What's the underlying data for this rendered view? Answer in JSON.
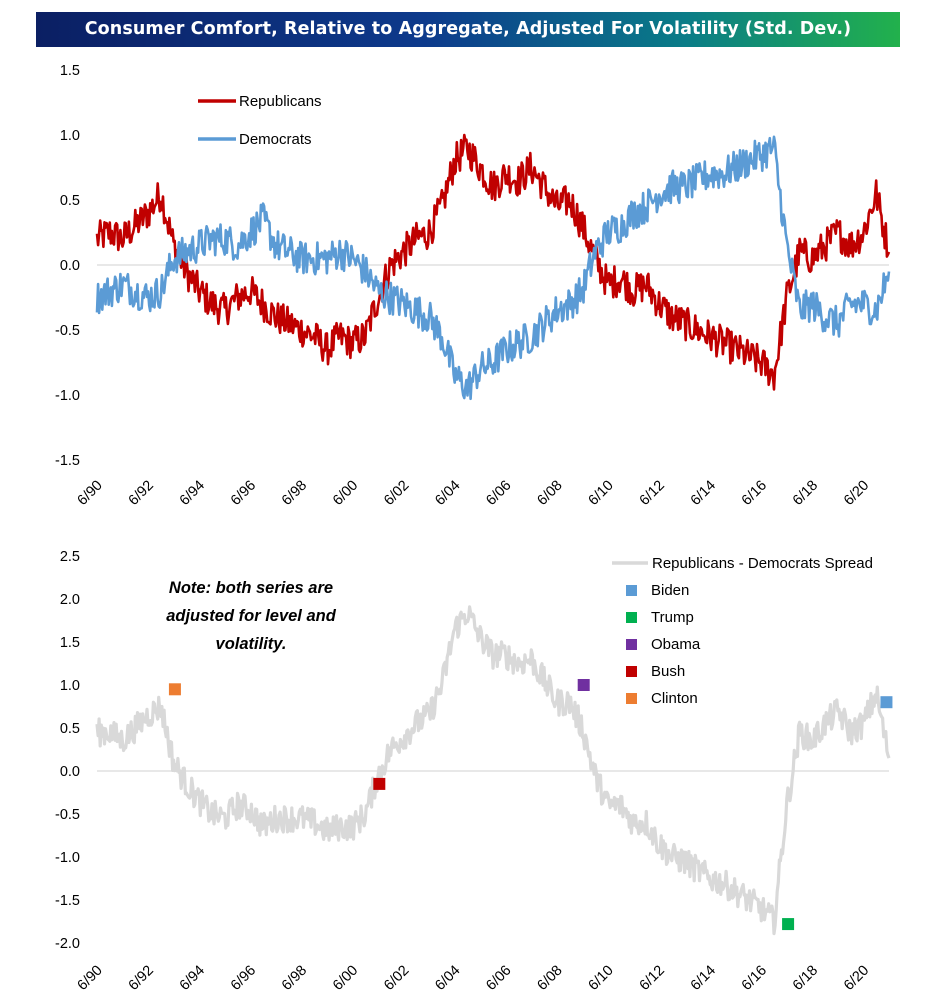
{
  "title": "Consumer Comfort, Relative to Aggregate, Adjusted For Volatility (Std. Dev.)",
  "colors": {
    "republicans": "#c00000",
    "democrats": "#5b9bd5",
    "spread": "#d9d9d9",
    "biden": "#5b9bd5",
    "trump": "#00b050",
    "obama": "#7030a0",
    "bush": "#c00000",
    "clinton": "#ed7d31"
  },
  "chart_data": [
    {
      "type": "line",
      "title": "Consumer Comfort, Relative to Aggregate, Adjusted For Volatility (Std. Dev.)",
      "xlabel": "",
      "ylabel": "",
      "ylim": [
        -1.5,
        1.5
      ],
      "y_ticks": [
        "1.5",
        "1.0",
        "0.5",
        "0.0",
        "-0.5",
        "-1.0",
        "-1.5"
      ],
      "x_ticks": [
        "6/90",
        "6/92",
        "6/94",
        "6/96",
        "6/98",
        "6/00",
        "6/02",
        "6/04",
        "6/06",
        "6/08",
        "6/10",
        "6/12",
        "6/14",
        "6/16",
        "6/18",
        "6/20"
      ],
      "x_range": [
        1990.0,
        2021.0
      ],
      "legend": "top-left",
      "series": [
        {
          "name": "Republicans",
          "x": [
            1990.0,
            1990.5,
            1991.0,
            1991.5,
            1992.0,
            1992.5,
            1993.0,
            1993.5,
            1994.0,
            1994.5,
            1995.0,
            1995.5,
            1996.0,
            1996.5,
            1997.0,
            1997.5,
            1998.0,
            1998.5,
            1999.0,
            1999.5,
            2000.0,
            2000.5,
            2001.0,
            2001.5,
            2002.0,
            2002.5,
            2003.0,
            2003.5,
            2004.0,
            2004.5,
            2005.0,
            2005.5,
            2006.0,
            2006.5,
            2007.0,
            2007.5,
            2008.0,
            2008.5,
            2009.0,
            2009.5,
            2010.0,
            2010.5,
            2011.0,
            2011.5,
            2012.0,
            2012.5,
            2013.0,
            2013.5,
            2014.0,
            2014.5,
            2015.0,
            2015.5,
            2016.0,
            2016.5,
            2017.0,
            2017.5,
            2018.0,
            2018.5,
            2019.0,
            2019.5,
            2020.0,
            2020.5,
            2021.0
          ],
          "y": [
            0.2,
            0.25,
            0.2,
            0.3,
            0.4,
            0.55,
            0.15,
            -0.05,
            -0.2,
            -0.3,
            -0.35,
            -0.25,
            -0.2,
            -0.3,
            -0.4,
            -0.45,
            -0.5,
            -0.55,
            -0.65,
            -0.55,
            -0.6,
            -0.55,
            -0.25,
            0.0,
            0.1,
            0.2,
            0.25,
            0.45,
            0.8,
            0.9,
            0.75,
            0.6,
            0.7,
            0.65,
            0.75,
            0.6,
            0.45,
            0.5,
            0.3,
            0.05,
            -0.15,
            -0.1,
            -0.2,
            -0.15,
            -0.3,
            -0.4,
            -0.45,
            -0.5,
            -0.55,
            -0.6,
            -0.65,
            -0.7,
            -0.75,
            -0.85,
            -0.25,
            0.1,
            0.05,
            0.15,
            0.25,
            0.15,
            0.25,
            0.55,
            0.1
          ]
        },
        {
          "name": "Democrats",
          "x": [
            1990.0,
            1990.5,
            1991.0,
            1991.5,
            1992.0,
            1992.5,
            1993.0,
            1993.5,
            1994.0,
            1994.5,
            1995.0,
            1995.5,
            1996.0,
            1996.5,
            1997.0,
            1997.5,
            1998.0,
            1998.5,
            1999.0,
            1999.5,
            2000.0,
            2000.5,
            2001.0,
            2001.5,
            2002.0,
            2002.5,
            2003.0,
            2003.5,
            2004.0,
            2004.5,
            2005.0,
            2005.5,
            2006.0,
            2006.5,
            2007.0,
            2007.5,
            2008.0,
            2008.5,
            2009.0,
            2009.5,
            2010.0,
            2010.5,
            2011.0,
            2011.5,
            2012.0,
            2012.5,
            2013.0,
            2013.5,
            2014.0,
            2014.5,
            2015.0,
            2015.5,
            2016.0,
            2016.5,
            2017.0,
            2017.5,
            2018.0,
            2018.5,
            2019.0,
            2019.5,
            2020.0,
            2020.5,
            2021.0
          ],
          "y": [
            -0.25,
            -0.2,
            -0.15,
            -0.2,
            -0.25,
            -0.2,
            0.05,
            0.1,
            0.15,
            0.2,
            0.2,
            0.15,
            0.25,
            0.35,
            0.15,
            0.1,
            0.05,
            0.05,
            0.05,
            0.1,
            0.05,
            -0.05,
            -0.2,
            -0.25,
            -0.3,
            -0.35,
            -0.4,
            -0.55,
            -0.85,
            -0.95,
            -0.8,
            -0.75,
            -0.65,
            -0.6,
            -0.55,
            -0.45,
            -0.35,
            -0.3,
            -0.2,
            0.1,
            0.25,
            0.3,
            0.4,
            0.45,
            0.55,
            0.6,
            0.6,
            0.65,
            0.7,
            0.7,
            0.75,
            0.8,
            0.85,
            0.9,
            0.15,
            -0.35,
            -0.3,
            -0.4,
            -0.45,
            -0.3,
            -0.3,
            -0.35,
            -0.05
          ]
        }
      ]
    },
    {
      "type": "line",
      "title": "",
      "xlabel": "",
      "ylabel": "",
      "ylim": [
        -2.0,
        2.5
      ],
      "y_ticks": [
        "2.5",
        "2.0",
        "1.5",
        "1.0",
        "0.5",
        "0.0",
        "-0.5",
        "-1.0",
        "-1.5",
        "-2.0"
      ],
      "x_ticks": [
        "6/90",
        "6/92",
        "6/94",
        "6/96",
        "6/98",
        "6/00",
        "6/02",
        "6/04",
        "6/06",
        "6/08",
        "6/10",
        "6/12",
        "6/14",
        "6/16",
        "6/18",
        "6/20"
      ],
      "x_range": [
        1990.0,
        2021.0
      ],
      "legend": "top-right",
      "annotation": [
        "Note: both series are",
        "adjusted for level and",
        "volatility."
      ],
      "series": [
        {
          "name": "Republicans - Democrats Spread",
          "x": [
            1990.0,
            1990.5,
            1991.0,
            1991.5,
            1992.0,
            1992.5,
            1993.0,
            1993.5,
            1994.0,
            1994.5,
            1995.0,
            1995.5,
            1996.0,
            1996.5,
            1997.0,
            1997.5,
            1998.0,
            1998.5,
            1999.0,
            1999.5,
            2000.0,
            2000.5,
            2001.0,
            2001.5,
            2002.0,
            2002.5,
            2003.0,
            2003.5,
            2004.0,
            2004.5,
            2005.0,
            2005.5,
            2006.0,
            2006.5,
            2007.0,
            2007.5,
            2008.0,
            2008.5,
            2009.0,
            2009.5,
            2010.0,
            2010.5,
            2011.0,
            2011.5,
            2012.0,
            2012.5,
            2013.0,
            2013.5,
            2014.0,
            2014.5,
            2015.0,
            2015.5,
            2016.0,
            2016.5,
            2017.0,
            2017.5,
            2018.0,
            2018.5,
            2019.0,
            2019.5,
            2020.0,
            2020.5,
            2021.0
          ],
          "y": [
            0.45,
            0.45,
            0.35,
            0.5,
            0.65,
            0.75,
            0.1,
            -0.15,
            -0.35,
            -0.5,
            -0.55,
            -0.4,
            -0.45,
            -0.65,
            -0.55,
            -0.55,
            -0.55,
            -0.6,
            -0.7,
            -0.65,
            -0.65,
            -0.5,
            -0.05,
            0.25,
            0.4,
            0.55,
            0.65,
            1.0,
            1.65,
            1.85,
            1.55,
            1.35,
            1.35,
            1.25,
            1.3,
            1.05,
            0.8,
            0.8,
            0.5,
            -0.05,
            -0.4,
            -0.4,
            -0.6,
            -0.6,
            -0.85,
            -1.0,
            -1.05,
            -1.15,
            -1.25,
            -1.3,
            -1.4,
            -1.5,
            -1.6,
            -1.75,
            -0.4,
            0.45,
            0.35,
            0.55,
            0.7,
            0.45,
            0.55,
            0.9,
            0.15
          ]
        }
      ],
      "markers": [
        {
          "name": "Biden",
          "x": 2020.9,
          "y": 0.8
        },
        {
          "name": "Trump",
          "x": 2017.05,
          "y": -1.78
        },
        {
          "name": "Obama",
          "x": 2009.05,
          "y": 1.0
        },
        {
          "name": "Bush",
          "x": 2001.05,
          "y": -0.15
        },
        {
          "name": "Clinton",
          "x": 1993.05,
          "y": 0.95
        }
      ]
    }
  ],
  "legend_top": [
    {
      "label": "Republicans",
      "color_key": "republicans"
    },
    {
      "label": "Democrats",
      "color_key": "democrats"
    }
  ],
  "legend_bottom": [
    {
      "label": "Republicans - Democrats Spread",
      "color_key": "spread",
      "kind": "line"
    },
    {
      "label": "Biden",
      "color_key": "biden",
      "kind": "square"
    },
    {
      "label": "Trump",
      "color_key": "trump",
      "kind": "square"
    },
    {
      "label": "Obama",
      "color_key": "obama",
      "kind": "square"
    },
    {
      "label": "Bush",
      "color_key": "bush",
      "kind": "square"
    },
    {
      "label": "Clinton",
      "color_key": "clinton",
      "kind": "square"
    }
  ]
}
